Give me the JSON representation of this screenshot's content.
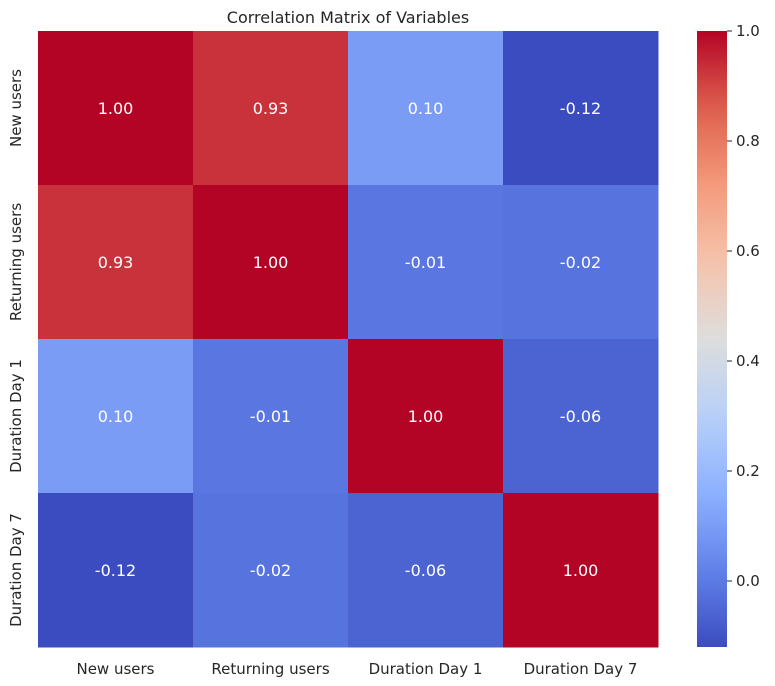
{
  "chart_data": {
    "type": "heatmap",
    "title": "Correlation Matrix of Variables",
    "xlabel": "",
    "ylabel": "",
    "x_categories": [
      "New users",
      "Returning users",
      "Duration Day 1",
      "Duration Day 7"
    ],
    "y_categories": [
      "New users",
      "Returning users",
      "Duration Day 1",
      "Duration Day 7"
    ],
    "values": [
      [
        1.0,
        0.93,
        0.1,
        -0.12
      ],
      [
        0.93,
        1.0,
        -0.01,
        -0.02
      ],
      [
        0.1,
        -0.01,
        1.0,
        -0.06
      ],
      [
        -0.12,
        -0.02,
        -0.06,
        1.0
      ]
    ],
    "annotation_format": "0.00",
    "colormap": "coolwarm",
    "colorbar": {
      "vmin": -0.12,
      "vmax": 1.0,
      "ticks": [
        0.0,
        0.2,
        0.4,
        0.6,
        0.8,
        1.0
      ],
      "tick_labels": [
        "0.0",
        "0.2",
        "0.4",
        "0.6",
        "0.8",
        "1.0"
      ]
    }
  }
}
